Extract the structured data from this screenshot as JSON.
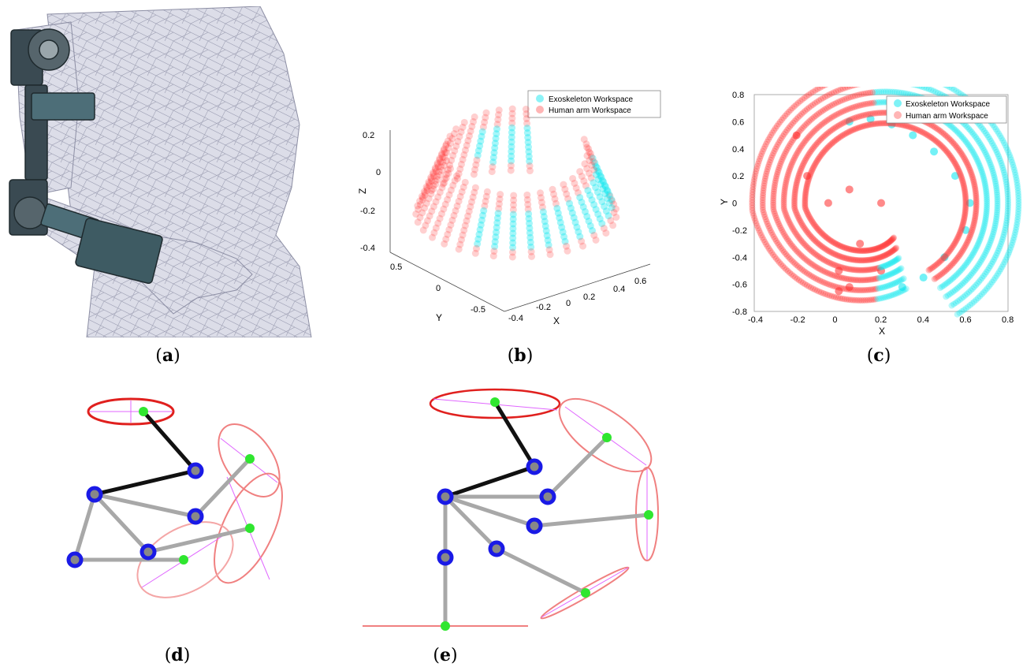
{
  "figure": {
    "captions": {
      "a": {
        "open": "(",
        "letter": "a",
        "close": ")"
      },
      "b": {
        "open": "(",
        "letter": "b",
        "close": ")"
      },
      "c": {
        "open": "(",
        "letter": "c",
        "close": ")"
      },
      "d": {
        "open": "(",
        "letter": "d",
        "close": ")"
      },
      "e": {
        "open": "(",
        "letter": "e",
        "close": ")"
      }
    }
  },
  "panel_b": {
    "legend": [
      "Exoskeleton Workspace",
      "Human arm Workspace"
    ],
    "z_label": "Z",
    "y_label": "Y",
    "x_label": "X",
    "z_ticks": [
      "0.2",
      "0",
      "-0.2",
      "-0.4"
    ],
    "y_ticks": [
      "0.5",
      "0",
      "-0.5"
    ],
    "x_ticks": [
      "-0.4",
      "-0.2",
      "0",
      "0.2",
      "0.4",
      "0.6"
    ]
  },
  "chart_data": {
    "type": "scatter",
    "title": "",
    "xlabel": "X",
    "ylabel": "Y",
    "xlim": [
      -0.4,
      0.8
    ],
    "ylim": [
      -0.8,
      0.8
    ],
    "x_ticks": [
      "-0.4",
      "-0.2",
      "0",
      "0.2",
      "0.4",
      "0.6",
      "0.8"
    ],
    "y_ticks": [
      "0.8",
      "0.6",
      "0.4",
      "0.2",
      "0",
      "-0.2",
      "-0.4",
      "-0.6",
      "-0.8"
    ],
    "legend_position": "top-right",
    "series": [
      {
        "name": "Exoskeleton Workspace",
        "color": "#00e5ee",
        "x": [
          0.05,
          0.15,
          0.25,
          0.35,
          0.45,
          0.55,
          0.62,
          0.6,
          0.5,
          0.4,
          0.3
        ],
        "y": [
          0.6,
          0.62,
          0.58,
          0.5,
          0.38,
          0.2,
          0.0,
          -0.2,
          -0.4,
          -0.55,
          -0.62
        ]
      },
      {
        "name": "Human arm Workspace",
        "color": "#ff2a2a",
        "x": [
          -0.2,
          -0.15,
          -0.05,
          0.05,
          0.2,
          0.1,
          0.0,
          0.0,
          0.05,
          0.2
        ],
        "y": [
          0.5,
          0.2,
          0.0,
          0.1,
          0.0,
          -0.3,
          -0.5,
          -0.65,
          -0.62,
          -0.5
        ]
      }
    ]
  },
  "colors": {
    "exo": "#00e5ee",
    "human": "#ff2a2a",
    "joint_blue": "#1a1ae6",
    "joint_green": "#2fe62f",
    "ellipse_red": "#e0201e",
    "ellipse_pink": "#f08080",
    "axis_magenta": "#e066ff"
  }
}
